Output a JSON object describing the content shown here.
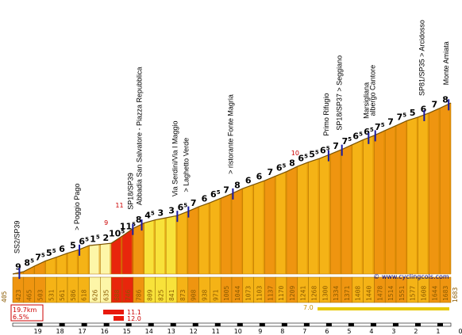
{
  "chart_data": {
    "type": "area",
    "title": "",
    "xlabel": "",
    "ylabel": "",
    "x_axis_ticks": [
      19,
      18,
      17,
      16,
      15,
      14,
      13,
      12,
      11,
      10,
      9,
      8,
      7,
      6,
      5,
      4,
      3,
      2,
      1,
      0
    ],
    "start_altitude": "405",
    "end_altitude": "1683",
    "segments": [
      {
        "alt": "423",
        "grade": "9",
        "high": false
      },
      {
        "alt": "465",
        "grade": "8⁵",
        "high": false
      },
      {
        "alt": "503",
        "grade": "7⁵",
        "high": false
      },
      {
        "alt": "531",
        "grade": "5⁵",
        "high": false
      },
      {
        "alt": "561",
        "grade": "6",
        "high": false
      },
      {
        "alt": "586",
        "grade": "5",
        "high": false
      },
      {
        "alt": "618",
        "grade": "6⁵",
        "high": false
      },
      {
        "alt": "626",
        "grade": "1⁵",
        "high": false
      },
      {
        "alt": "635",
        "grade": "2",
        "high": false
      },
      {
        "alt": "688",
        "grade": "10⁵",
        "high": true
      },
      {
        "alt": "746",
        "grade": "11⁵",
        "high": true
      },
      {
        "alt": "786",
        "grade": "8",
        "high": false
      },
      {
        "alt": "809",
        "grade": "4⁵",
        "high": false
      },
      {
        "alt": "825",
        "grade": "3",
        "high": false
      },
      {
        "alt": "841",
        "grade": "3",
        "high": false
      },
      {
        "alt": "873",
        "grade": "6⁵",
        "high": false
      },
      {
        "alt": "908",
        "grade": "7",
        "high": false
      },
      {
        "alt": "938",
        "grade": "6",
        "high": false
      },
      {
        "alt": "971",
        "grade": "6⁵",
        "high": false
      },
      {
        "alt": "1005",
        "grade": "7",
        "high": false
      },
      {
        "alt": "1044",
        "grade": "8",
        "high": false
      },
      {
        "alt": "1073",
        "grade": "6",
        "high": false
      },
      {
        "alt": "1103",
        "grade": "6",
        "high": false
      },
      {
        "alt": "1137",
        "grade": "7",
        "high": false
      },
      {
        "alt": "1170",
        "grade": "6⁵",
        "high": false
      },
      {
        "alt": "1209",
        "grade": "8",
        "high": false
      },
      {
        "alt": "1241",
        "grade": "6⁵",
        "high": false
      },
      {
        "alt": "1268",
        "grade": "5⁵",
        "high": false
      },
      {
        "alt": "1300",
        "grade": "6⁵",
        "high": false
      },
      {
        "alt": "1334",
        "grade": "7",
        "high": false
      },
      {
        "alt": "1371",
        "grade": "7⁵",
        "high": false
      },
      {
        "alt": "1408",
        "grade": "6⁵",
        "high": false
      },
      {
        "alt": "1440",
        "grade": "6⁵",
        "high": false
      },
      {
        "alt": "1478",
        "grade": "7⁵",
        "high": false
      },
      {
        "alt": "1514",
        "grade": "7",
        "high": false
      },
      {
        "alt": "1551",
        "grade": "7⁵",
        "high": false
      },
      {
        "alt": "1577",
        "grade": "5",
        "high": false
      },
      {
        "alt": "1608",
        "grade": "6",
        "high": false
      },
      {
        "alt": "1644",
        "grade": "7",
        "high": false
      },
      {
        "alt": "1683",
        "grade": "8",
        "high": false
      }
    ],
    "annotations": [
      {
        "text": "SS2/SP39",
        "km": 19.4
      },
      {
        "text": "> Poggio Pago",
        "km": 16.7
      },
      {
        "text": "SP18/SP39",
        "km": 14.3
      },
      {
        "text": "Abbadia San Salvatore - Piazza Repubblica",
        "km": 13.9
      },
      {
        "text": "Via Serdini/Via I Maggio",
        "km": 12.3
      },
      {
        "text": "> Laghetto Verde",
        "km": 11.8
      },
      {
        "text": "> ristorante Fonte Magria",
        "km": 9.8
      },
      {
        "text": "Primo Rifugio",
        "km": 5.5
      },
      {
        "text": "SP18/SP37 > Seggiano",
        "km": 4.9
      },
      {
        "text": "Marsigliana",
        "km": 3.7
      },
      {
        "text": "albergo Cantore",
        "km": 3.4
      },
      {
        "text": "SP81/SP35 > Arcidosso",
        "km": 1.2
      },
      {
        "text": "Monte Amiata",
        "km": 0.1
      }
    ],
    "max_grade_labels": [
      "9",
      "11",
      "10"
    ],
    "summary": {
      "distance": "19.7km",
      "avg_grade": "6.5%"
    },
    "legend": [
      {
        "value": "11.1",
        "color": "#e8180c"
      },
      {
        "value": "12.0",
        "color": "#e8180c"
      },
      {
        "value": "7.0",
        "color": "#e8c800"
      }
    ],
    "credit": "© www.cyclingcols.com"
  }
}
